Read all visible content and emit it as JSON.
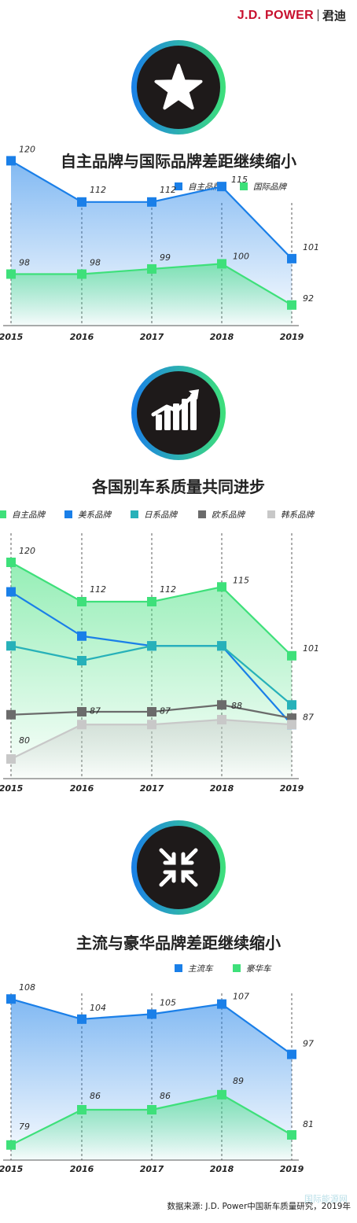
{
  "brand": {
    "logo_text": "J.D. POWER",
    "logo_cn": "君迪"
  },
  "footer": {
    "source": "数据来源: J.D. Power中国新车质量研究，2019年",
    "watermark": "国际能源网"
  },
  "sections": [
    {
      "icon": "star-icon"
    },
    {
      "icon": "trend-up-icon"
    },
    {
      "icon": "converge-arrows-icon"
    }
  ],
  "colors": {
    "blue": "#1a7fe8",
    "green": "#3ee07a",
    "teal": "#27b1b9",
    "gray": "#6b6b6b",
    "lightgray": "#c8c8c8",
    "icon_bg": "#1e1a1a"
  },
  "chart_data": [
    {
      "type": "line",
      "title": "自主品牌与国际品牌差距继续缩小",
      "categories": [
        "2015",
        "2016",
        "2017",
        "2018",
        "2019"
      ],
      "series": [
        {
          "name": "自主品牌",
          "color": "#1a7fe8",
          "values": [
            120,
            112,
            112,
            115,
            101
          ],
          "labeled": true,
          "fill": true
        },
        {
          "name": "国际品牌",
          "color": "#3ee07a",
          "values": [
            98,
            98,
            99,
            100,
            92
          ],
          "labeled": true,
          "fill": true
        }
      ],
      "ylim": [
        88,
        124
      ]
    },
    {
      "type": "line",
      "title": "各国别车系质量共同进步",
      "categories": [
        "2015",
        "2016",
        "2017",
        "2018",
        "2019"
      ],
      "series": [
        {
          "name": "自主品牌",
          "color": "#3ee07a",
          "values": [
            120,
            112,
            112,
            115,
            101
          ],
          "labeled": true,
          "fill": true
        },
        {
          "name": "美系品牌",
          "color": "#1a7fe8",
          "values": [
            114,
            105,
            103,
            103,
            87
          ],
          "labeled": false,
          "fill": false
        },
        {
          "name": "日系品牌",
          "color": "#27b1b9",
          "values": [
            103,
            100,
            103,
            103,
            91
          ],
          "labeled": false,
          "fill": false
        },
        {
          "name": "欧系品牌",
          "color": "#6b6b6b",
          "values": [
            89,
            89.6,
            89.6,
            91,
            88.3
          ],
          "labeled": false,
          "fill": false
        },
        {
          "name": "韩系品牌",
          "color": "#c8c8c8",
          "values": [
            80,
            87,
            87,
            88,
            87
          ],
          "labeled": true,
          "fill": true
        }
      ],
      "ylim": [
        76,
        124
      ]
    },
    {
      "type": "line",
      "title": "主流与豪华品牌差距继续缩小",
      "categories": [
        "2015",
        "2016",
        "2017",
        "2018",
        "2019"
      ],
      "series": [
        {
          "name": "主流车",
          "color": "#1a7fe8",
          "values": [
            108,
            104,
            105,
            107,
            97
          ],
          "labeled": true,
          "fill": true
        },
        {
          "name": "豪华车",
          "color": "#3ee07a",
          "values": [
            79,
            86,
            86,
            89,
            81
          ],
          "labeled": true,
          "fill": true
        }
      ],
      "ylim": [
        76,
        110
      ]
    }
  ]
}
